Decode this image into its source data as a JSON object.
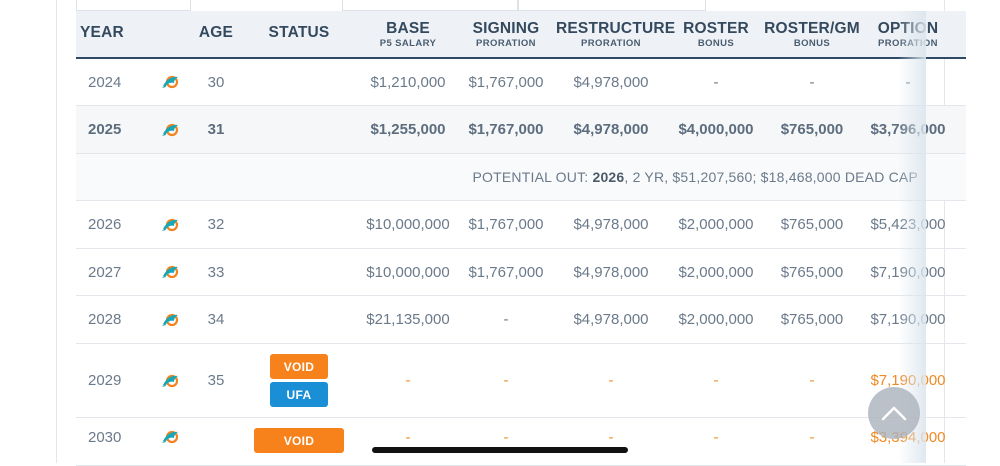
{
  "header": {
    "columns": [
      {
        "main": "YEAR",
        "sub": ""
      },
      {
        "main": "",
        "sub": ""
      },
      {
        "main": "AGE",
        "sub": ""
      },
      {
        "main": "STATUS",
        "sub": ""
      },
      {
        "main": "BASE",
        "sub": "P5 SALARY"
      },
      {
        "main": "SIGNING",
        "sub": "PRORATION"
      },
      {
        "main": "RESTRUCTURE",
        "sub": "PRORATION"
      },
      {
        "main": "ROSTER",
        "sub": "BONUS"
      },
      {
        "main": "ROSTER/GM",
        "sub": "BONUS"
      },
      {
        "main": "OPTION",
        "sub": "PRORATION"
      }
    ]
  },
  "rows": [
    {
      "year": "2024",
      "team_icon": "dolphin-logo-icon",
      "age": "30",
      "status": [],
      "base": "$1,210,000",
      "signing": "$1,767,000",
      "restructure": "$4,978,000",
      "roster": "-",
      "roster_gm": "-",
      "option": "-"
    },
    {
      "year": "2025",
      "team_icon": "dolphin-logo-icon",
      "age": "31",
      "status": [],
      "base": "$1,255,000",
      "signing": "$1,767,000",
      "restructure": "$4,978,000",
      "roster": "$4,000,000",
      "roster_gm": "$765,000",
      "option": "$3,796,000"
    },
    {
      "year": "2026",
      "team_icon": "dolphin-logo-icon",
      "age": "32",
      "status": [],
      "base": "$10,000,000",
      "signing": "$1,767,000",
      "restructure": "$4,978,000",
      "roster": "$2,000,000",
      "roster_gm": "$765,000",
      "option": "$5,423,000"
    },
    {
      "year": "2027",
      "team_icon": "dolphin-logo-icon",
      "age": "33",
      "status": [],
      "base": "$10,000,000",
      "signing": "$1,767,000",
      "restructure": "$4,978,000",
      "roster": "$2,000,000",
      "roster_gm": "$765,000",
      "option": "$7,190,000"
    },
    {
      "year": "2028",
      "team_icon": "dolphin-logo-icon",
      "age": "34",
      "status": [],
      "base": "$21,135,000",
      "signing": "-",
      "restructure": "$4,978,000",
      "roster": "$2,000,000",
      "roster_gm": "$765,000",
      "option": "$7,190,000"
    },
    {
      "year": "2029",
      "team_icon": "dolphin-logo-icon",
      "age": "35",
      "status": [
        "VOID",
        "UFA"
      ],
      "base": "-",
      "signing": "-",
      "restructure": "-",
      "roster": "-",
      "roster_gm": "-",
      "option": "$7,190,000"
    },
    {
      "year": "2030",
      "team_icon": "dolphin-logo-icon",
      "age": "",
      "status": [
        "VOID"
      ],
      "base": "-",
      "signing": "-",
      "restructure": "-",
      "roster": "-",
      "roster_gm": "-",
      "option": "$3,394,000"
    }
  ],
  "potential_out": {
    "label": "POTENTIAL OUT:",
    "year": "2026",
    "details": ", 2 YR, $51,207,560; $18,468,000 DEAD CAP"
  },
  "colors": {
    "header_bg": "#eef2f6",
    "header_border": "#2f4a66",
    "void_badge": "#f7821b",
    "ufa_badge": "#1a8fd6",
    "void_year_value": "#f08a24",
    "dolphin_aqua": "#18a7b5",
    "dolphin_orange": "#f58220"
  },
  "controls": {
    "scroll_top_icon": "chevron-up-icon"
  }
}
